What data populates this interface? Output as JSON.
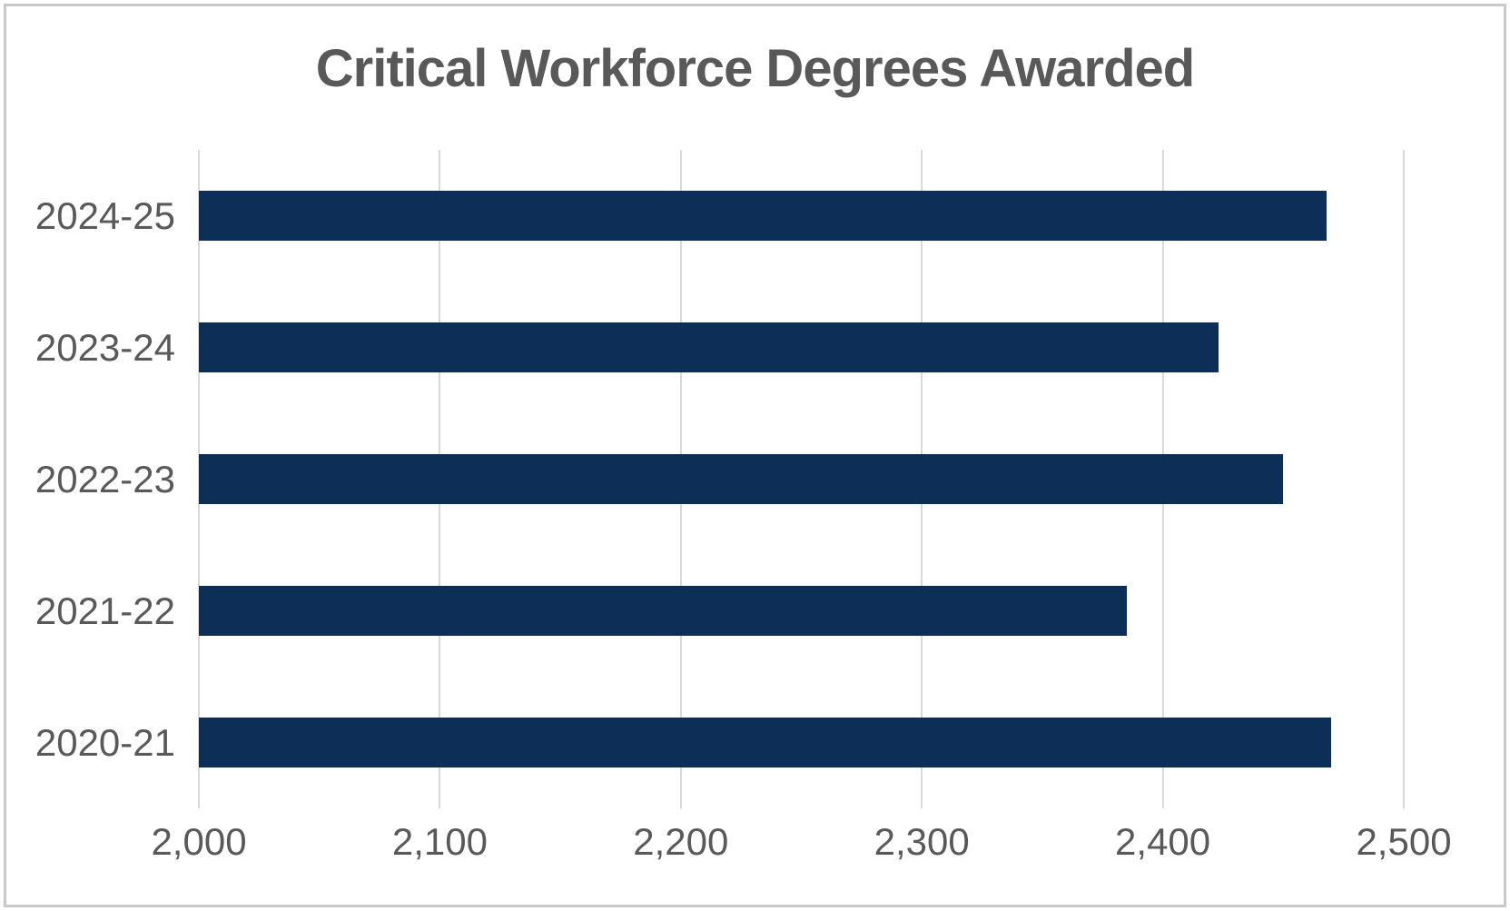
{
  "title": "Critical Workforce Degrees Awarded",
  "colors": {
    "bar": "#0d2e56",
    "gridline": "#d9d9d9",
    "text": "#595959",
    "border": "#c8c9ca",
    "background": "#ffffff"
  },
  "chart_data": {
    "type": "bar",
    "orientation": "horizontal",
    "title": "Critical Workforce Degrees Awarded",
    "categories": [
      "2024-25",
      "2023-24",
      "2022-23",
      "2021-22",
      "2020-21"
    ],
    "values": [
      2468,
      2423,
      2450,
      2385,
      2470
    ],
    "xlabel": "",
    "ylabel": "",
    "xlim": [
      2000,
      2500
    ],
    "x_tick_values": [
      2000,
      2100,
      2200,
      2300,
      2400,
      2500
    ],
    "x_tick_labels": [
      "2,000",
      "2,100",
      "2,200",
      "2,300",
      "2,400",
      "2,500"
    ],
    "grid": "vertical-gridlines",
    "legend": "none"
  }
}
